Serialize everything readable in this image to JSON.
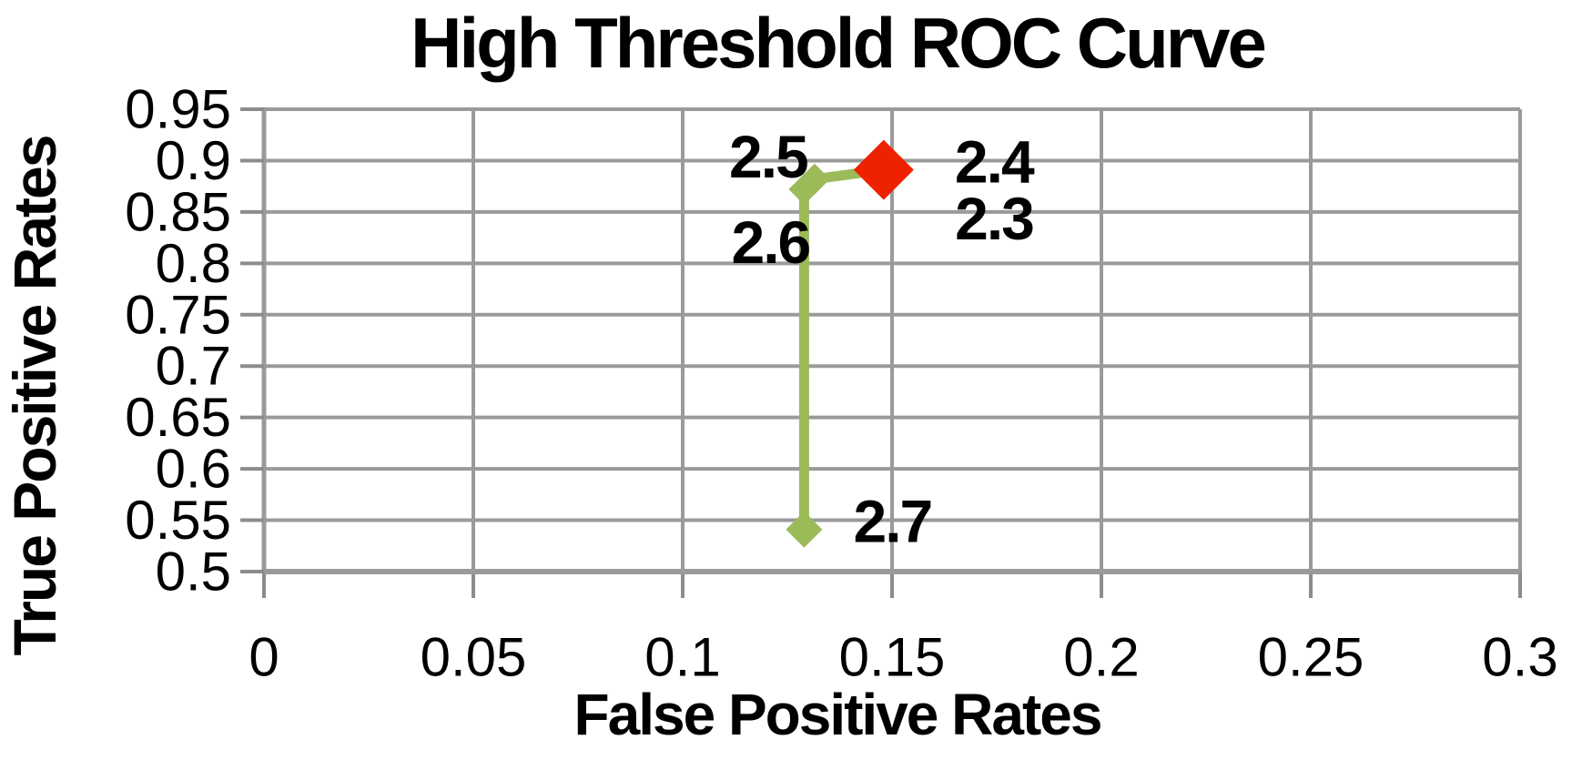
{
  "chart_data": {
    "type": "scatter",
    "title": "High Threshold ROC Curve",
    "xlabel": "False Positive Rates",
    "ylabel": "True Positive Rates",
    "xlim": [
      0,
      0.3
    ],
    "ylim": [
      0.5,
      0.95
    ],
    "grid": true,
    "legend": "none",
    "colors": {
      "grid": "#9a9a9a",
      "axis": "#8c8c8c",
      "curve": "#9bbb59",
      "highlight": "#ee2200",
      "text": "#000000",
      "background": "#ffffff"
    },
    "xticks": {
      "values": [
        0,
        0.05,
        0.1,
        0.15,
        0.2,
        0.25,
        0.3
      ],
      "labels": [
        "0",
        "0.05",
        "0.1",
        "0.15",
        "0.2",
        "0.25",
        "0.3"
      ]
    },
    "yticks": {
      "values": [
        0.95,
        0.9,
        0.85,
        0.8,
        0.75,
        0.7,
        0.65,
        0.6,
        0.55,
        0.5
      ],
      "labels": [
        "0.95",
        "0.9",
        "0.85",
        "0.8",
        "0.75",
        "0.7",
        "0.65",
        "0.6",
        "0.55",
        "0.5"
      ]
    },
    "series": [
      {
        "name": "roc-curve",
        "color": "#9bbb59",
        "marker": "diamond",
        "marker_radius": 17,
        "line_width": 11,
        "points": [
          {
            "label": "2.7",
            "x": 0.129,
            "y": 0.541,
            "marker_radius": 20,
            "label_dx": 97,
            "label_dy": -9
          },
          {
            "label": "2.6",
            "x": 0.129,
            "y": 0.872,
            "label_dx": -37,
            "label_dy": 58
          },
          {
            "label": "2.5",
            "x": 0.1315,
            "y": 0.882,
            "label_dx": -51,
            "label_dy": -25
          },
          {
            "label": "2.4",
            "x": 0.148,
            "y": 0.891,
            "label_dx": 121,
            "label_dy": -9
          },
          {
            "label": "2.3",
            "x": 0.15,
            "y": 0.889,
            "label_dx": 112,
            "label_dy": 51
          }
        ]
      },
      {
        "name": "highlight-point",
        "color": "#ee2200",
        "marker": "diamond",
        "marker_radius": 33,
        "line_width": 0,
        "points": [
          {
            "x": 0.148,
            "y": 0.891
          }
        ]
      }
    ]
  }
}
